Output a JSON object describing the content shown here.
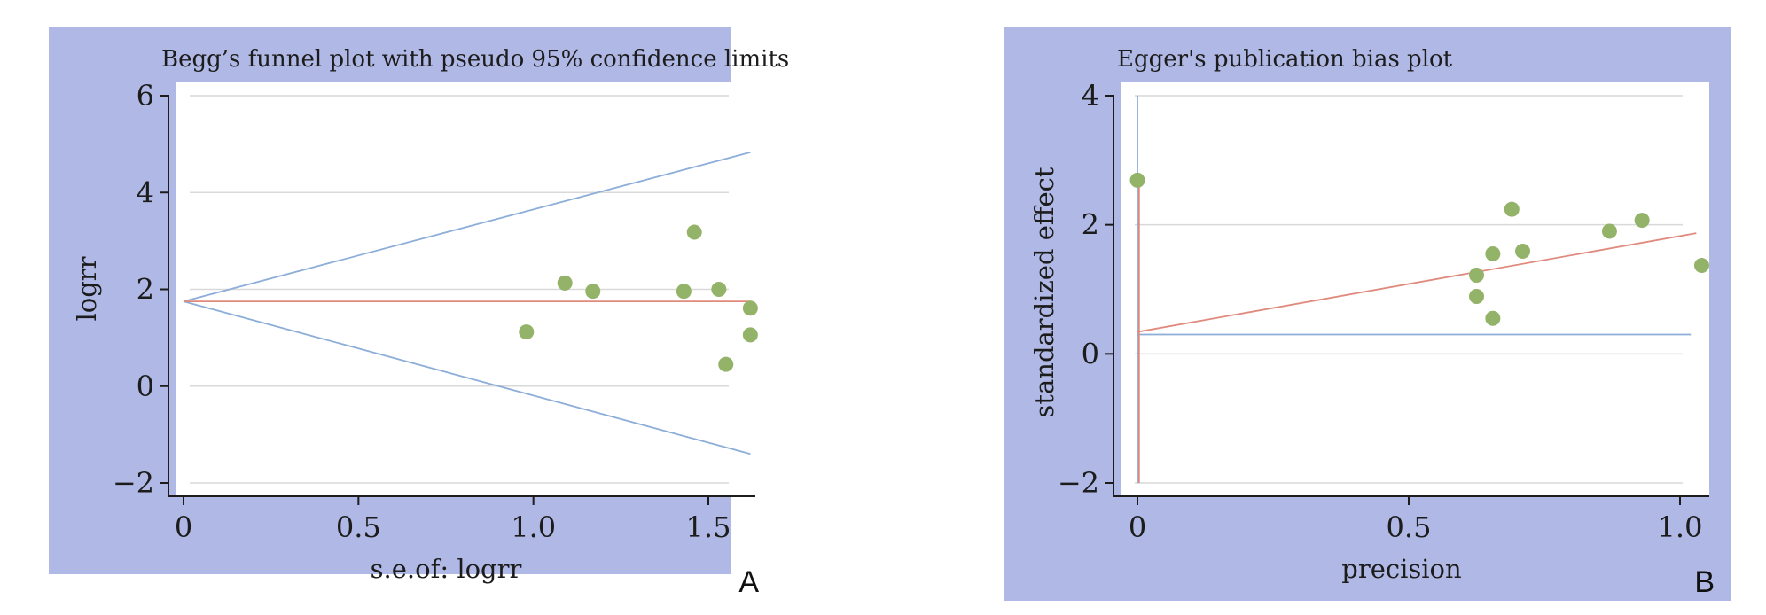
{
  "colors": {
    "panel_bg": "#b0b9e5",
    "plot_bg": "#ffffff",
    "grid": "#d9d9d9",
    "axis": "#1c1c1c",
    "blue_line": "#8caed8",
    "red_line": "#e08a7e",
    "points": "#93b368"
  },
  "chart_data": [
    {
      "type": "scatter",
      "panel_label": "A",
      "title": "Begg’s funnel plot with pseudo 95% confidence limits",
      "xlabel": "s.e.of: logrr",
      "ylabel": "logrr",
      "xlim": [
        0,
        1.6
      ],
      "ylim": [
        -2,
        6
      ],
      "xticks": [
        0,
        0.5,
        1.0,
        1.5
      ],
      "xtick_labels": [
        "0",
        "0.5",
        "1.0",
        "1.5"
      ],
      "yticks": [
        6,
        4,
        2,
        0,
        -2
      ],
      "ytick_labels": [
        "6",
        "4",
        "2",
        "0",
        "−2"
      ],
      "grid": true,
      "points": [
        {
          "x": 0.98,
          "y": 1.12
        },
        {
          "x": 1.09,
          "y": 2.13
        },
        {
          "x": 1.17,
          "y": 1.96
        },
        {
          "x": 1.43,
          "y": 1.96
        },
        {
          "x": 1.46,
          "y": 3.18
        },
        {
          "x": 1.53,
          "y": 2.0
        },
        {
          "x": 1.55,
          "y": 0.45
        },
        {
          "x": 1.62,
          "y": 1.61
        },
        {
          "x": 1.62,
          "y": 1.06
        }
      ],
      "lines": [
        {
          "role": "pooled estimate",
          "color": "red",
          "from": [
            0,
            1.75
          ],
          "to": [
            1.62,
            1.75
          ]
        },
        {
          "role": "upper pseudo 95% limit",
          "color": "blue",
          "from": [
            0,
            1.75
          ],
          "to": [
            1.62,
            4.83
          ]
        },
        {
          "role": "lower pseudo 95% limit",
          "color": "blue",
          "from": [
            0,
            1.75
          ],
          "to": [
            1.62,
            -1.4
          ]
        }
      ]
    },
    {
      "type": "scatter",
      "panel_label": "B",
      "title": "Egger's publication bias plot",
      "xlabel": "precision",
      "ylabel": "standardized effect",
      "xlim": [
        0,
        1.0
      ],
      "ylim": [
        -2,
        4
      ],
      "xticks": [
        0,
        0.5,
        1.0
      ],
      "xtick_labels": [
        "0",
        "0.5",
        "1.0"
      ],
      "yticks": [
        4,
        2,
        0,
        -2
      ],
      "ytick_labels": [
        "4",
        "2",
        "0",
        "−2"
      ],
      "grid": true,
      "points": [
        {
          "x": 0.0,
          "y": 2.69
        },
        {
          "x": 0.625,
          "y": 1.22
        },
        {
          "x": 0.625,
          "y": 0.89
        },
        {
          "x": 0.655,
          "y": 1.55
        },
        {
          "x": 0.655,
          "y": 0.55
        },
        {
          "x": 0.69,
          "y": 2.24
        },
        {
          "x": 0.71,
          "y": 1.59
        },
        {
          "x": 0.87,
          "y": 1.9
        },
        {
          "x": 0.93,
          "y": 2.07
        },
        {
          "x": 1.04,
          "y": 1.37
        }
      ],
      "lines": [
        {
          "role": "regression line",
          "color": "red",
          "from": [
            0,
            0.34
          ],
          "to": [
            1.03,
            1.87
          ]
        },
        {
          "role": "reference horizontal",
          "color": "blue",
          "from": [
            0,
            0.3
          ],
          "to": [
            1.02,
            0.3
          ]
        },
        {
          "role": "confidence interval of intercept (vertical)",
          "color": "blue",
          "from": [
            0,
            -2
          ],
          "to": [
            0,
            4
          ]
        },
        {
          "role": "intercept (vertical)",
          "color": "red",
          "from": [
            0.003,
            -2.0
          ],
          "to": [
            0.003,
            2.7
          ]
        }
      ]
    }
  ]
}
